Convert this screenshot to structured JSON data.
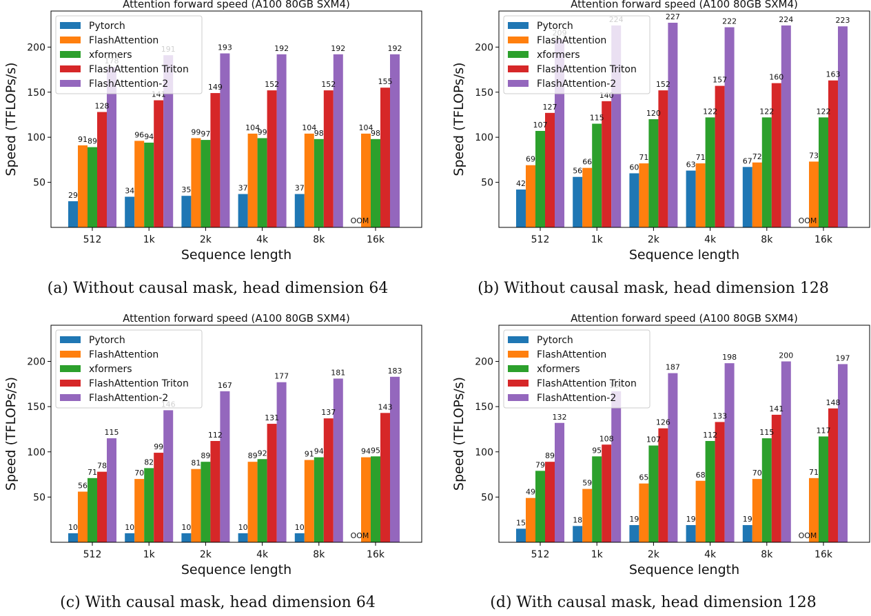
{
  "figure": {
    "captions": [
      "(a) Without causal mask, head dimension 64",
      "(b) Without causal mask, head dimension 128",
      "(c) With causal mask, head dimension 64",
      "(d) With causal mask, head dimension 128"
    ]
  },
  "chart_data": [
    {
      "type": "bar",
      "title": "Attention forward speed (A100 80GB SXM4)",
      "xlabel": "Sequence length",
      "ylabel": "Speed (TFLOPs/s)",
      "categories": [
        "512",
        "1k",
        "2k",
        "4k",
        "8k",
        "16k"
      ],
      "yticks": [
        50,
        100,
        150,
        200
      ],
      "ylim": [
        0,
        240
      ],
      "legend_position": "top-left",
      "grid": false,
      "series": [
        {
          "name": "Pytorch",
          "color": "#1f77b4",
          "values": [
            29,
            34,
            35,
            37,
            37,
            null
          ]
        },
        {
          "name": "FlashAttention",
          "color": "#ff7f0e",
          "values": [
            91,
            96,
            99,
            104,
            104,
            104
          ]
        },
        {
          "name": "xformers",
          "color": "#2ca02c",
          "values": [
            89,
            94,
            97,
            99,
            98,
            98
          ]
        },
        {
          "name": "FlashAttention Triton",
          "color": "#d62728",
          "values": [
            128,
            141,
            149,
            152,
            152,
            155
          ]
        },
        {
          "name": "FlashAttention-2",
          "color": "#9467bd",
          "values": [
            178,
            191,
            193,
            192,
            192,
            192
          ]
        }
      ],
      "annotations": [
        {
          "text": "OOM",
          "series": "Pytorch",
          "category": "16k"
        }
      ]
    },
    {
      "type": "bar",
      "title": "Attention forward speed (A100 80GB SXM4)",
      "xlabel": "Sequence length",
      "ylabel": "Speed (TFLOPs/s)",
      "categories": [
        "512",
        "1k",
        "2k",
        "4k",
        "8k",
        "16k"
      ],
      "yticks": [
        50,
        100,
        150,
        200
      ],
      "ylim": [
        0,
        240
      ],
      "legend_position": "top-left",
      "grid": false,
      "series": [
        {
          "name": "Pytorch",
          "color": "#1f77b4",
          "values": [
            42,
            56,
            60,
            63,
            67,
            null
          ]
        },
        {
          "name": "FlashAttention",
          "color": "#ff7f0e",
          "values": [
            69,
            66,
            71,
            71,
            72,
            73
          ]
        },
        {
          "name": "xformers",
          "color": "#2ca02c",
          "values": [
            107,
            115,
            120,
            122,
            122,
            122
          ]
        },
        {
          "name": "FlashAttention Triton",
          "color": "#d62728",
          "values": [
            127,
            140,
            152,
            157,
            160,
            163
          ]
        },
        {
          "name": "FlashAttention-2",
          "color": "#9467bd",
          "values": [
            209,
            224,
            227,
            222,
            224,
            223
          ]
        }
      ],
      "annotations": [
        {
          "text": "OOM",
          "series": "Pytorch",
          "category": "16k"
        }
      ]
    },
    {
      "type": "bar",
      "title": "Attention forward speed (A100 80GB SXM4)",
      "xlabel": "Sequence length",
      "ylabel": "Speed (TFLOPs/s)",
      "categories": [
        "512",
        "1k",
        "2k",
        "4k",
        "8k",
        "16k"
      ],
      "yticks": [
        50,
        100,
        150,
        200
      ],
      "ylim": [
        0,
        240
      ],
      "legend_position": "top-left",
      "grid": false,
      "series": [
        {
          "name": "Pytorch",
          "color": "#1f77b4",
          "values": [
            10,
            10,
            10,
            10,
            10,
            null
          ]
        },
        {
          "name": "FlashAttention",
          "color": "#ff7f0e",
          "values": [
            56,
            70,
            81,
            89,
            91,
            94
          ]
        },
        {
          "name": "xformers",
          "color": "#2ca02c",
          "values": [
            71,
            82,
            89,
            92,
            94,
            95
          ]
        },
        {
          "name": "FlashAttention Triton",
          "color": "#d62728",
          "values": [
            78,
            99,
            112,
            131,
            137,
            143
          ]
        },
        {
          "name": "FlashAttention-2",
          "color": "#9467bd",
          "values": [
            115,
            146,
            167,
            177,
            181,
            183
          ]
        }
      ],
      "annotations": [
        {
          "text": "OOM",
          "series": "Pytorch",
          "category": "16k"
        }
      ]
    },
    {
      "type": "bar",
      "title": "Attention forward speed (A100 80GB SXM4)",
      "xlabel": "Sequence length",
      "ylabel": "Speed (TFLOPs/s)",
      "categories": [
        "512",
        "1k",
        "2k",
        "4k",
        "8k",
        "16k"
      ],
      "yticks": [
        50,
        100,
        150,
        200
      ],
      "ylim": [
        0,
        240
      ],
      "legend_position": "top-left",
      "grid": false,
      "series": [
        {
          "name": "Pytorch",
          "color": "#1f77b4",
          "values": [
            15,
            18,
            19,
            19,
            19,
            null
          ]
        },
        {
          "name": "FlashAttention",
          "color": "#ff7f0e",
          "values": [
            49,
            59,
            65,
            68,
            70,
            71
          ]
        },
        {
          "name": "xformers",
          "color": "#2ca02c",
          "values": [
            79,
            95,
            107,
            112,
            115,
            117
          ]
        },
        {
          "name": "FlashAttention Triton",
          "color": "#d62728",
          "values": [
            89,
            108,
            126,
            133,
            141,
            148
          ]
        },
        {
          "name": "FlashAttention-2",
          "color": "#9467bd",
          "values": [
            132,
            167,
            187,
            198,
            200,
            197
          ]
        }
      ],
      "annotations": [
        {
          "text": "OOM",
          "series": "Pytorch",
          "category": "16k"
        }
      ]
    }
  ]
}
